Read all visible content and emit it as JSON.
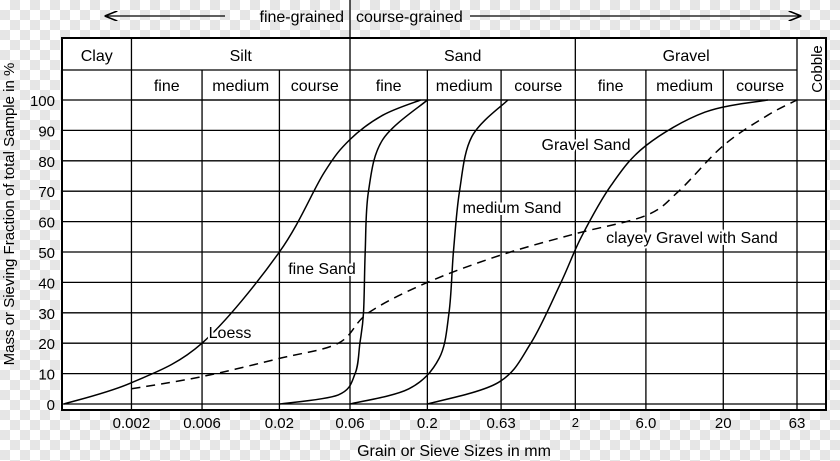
{
  "chart_data": {
    "type": "line",
    "title": "",
    "xlabel": "Grain or Sieve Sizes in mm",
    "ylabel": "Mass or Sieving Fraction of total Sample in %",
    "x_scale": "log",
    "ylim": [
      0,
      100
    ],
    "y_ticks": [
      "0",
      "10",
      "20",
      "30",
      "40",
      "50",
      "60",
      "70",
      "80",
      "90",
      "100"
    ],
    "x_ticks": [
      "0.002",
      "0.006",
      "0.02",
      "0.06",
      "0.2",
      "0.63",
      "2",
      "6.0",
      "20",
      "63"
    ],
    "grid": true,
    "top_header": {
      "fine_grained": "fine-grained",
      "coarse_grained": "course-grained"
    },
    "classes": [
      "Clay",
      "Silt",
      "Sand",
      "Gravel",
      "Cobble"
    ],
    "subclasses": [
      "fine",
      "medium",
      "course",
      "fine",
      "medium",
      "course",
      "fine",
      "medium",
      "course"
    ],
    "series": [
      {
        "name": "Loess",
        "style": "solid",
        "points": [
          [
            0.0007,
            0
          ],
          [
            0.002,
            7
          ],
          [
            0.006,
            20
          ],
          [
            0.02,
            50
          ],
          [
            0.04,
            76
          ],
          [
            0.06,
            87
          ],
          [
            0.1,
            95
          ],
          [
            0.18,
            100
          ]
        ]
      },
      {
        "name": "fine Sand",
        "style": "solid",
        "points": [
          [
            0.02,
            0
          ],
          [
            0.05,
            3
          ],
          [
            0.065,
            10
          ],
          [
            0.07,
            20
          ],
          [
            0.074,
            30
          ],
          [
            0.076,
            50
          ],
          [
            0.08,
            70
          ],
          [
            0.1,
            87
          ],
          [
            0.2,
            100
          ]
        ]
      },
      {
        "name": "medium Sand",
        "style": "solid",
        "points": [
          [
            0.06,
            0
          ],
          [
            0.15,
            5
          ],
          [
            0.24,
            15
          ],
          [
            0.28,
            30
          ],
          [
            0.3,
            50
          ],
          [
            0.33,
            70
          ],
          [
            0.4,
            88
          ],
          [
            0.7,
            100
          ]
        ]
      },
      {
        "name": "Gravel Sand",
        "style": "solid",
        "points": [
          [
            0.2,
            0
          ],
          [
            0.6,
            7
          ],
          [
            1.0,
            20
          ],
          [
            1.6,
            40
          ],
          [
            2.2,
            55
          ],
          [
            3.5,
            72
          ],
          [
            6.0,
            85
          ],
          [
            15,
            96
          ],
          [
            40,
            100
          ]
        ]
      },
      {
        "name": "clayey Gravel with Sand",
        "style": "dashed",
        "points": [
          [
            0.002,
            5
          ],
          [
            0.006,
            9
          ],
          [
            0.02,
            15
          ],
          [
            0.05,
            20
          ],
          [
            0.08,
            30
          ],
          [
            0.2,
            40
          ],
          [
            0.63,
            49
          ],
          [
            2,
            56
          ],
          [
            6.0,
            62
          ],
          [
            10,
            70
          ],
          [
            20,
            85
          ],
          [
            40,
            95
          ],
          [
            63,
            100
          ]
        ]
      }
    ]
  }
}
